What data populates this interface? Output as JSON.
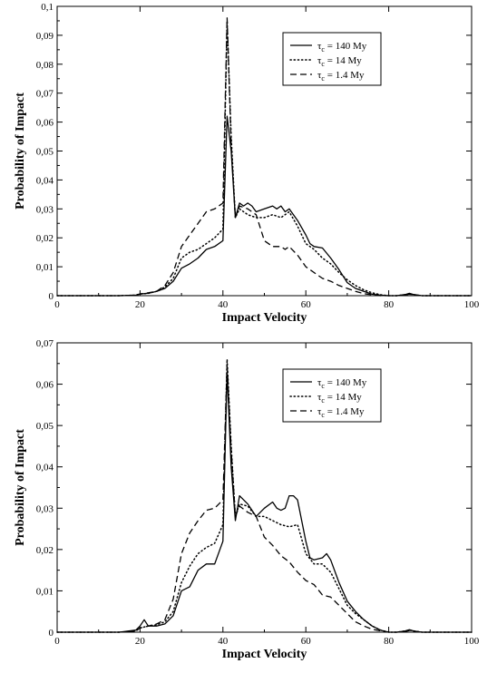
{
  "chart_data": [
    {
      "type": "line",
      "title": "",
      "xlabel": "Impact Velocity",
      "ylabel": "Probability of Impact",
      "xlim": [
        0,
        100
      ],
      "ylim": [
        0,
        0.1
      ],
      "x_ticks": [
        0,
        20,
        40,
        60,
        80,
        100
      ],
      "x_tick_labels": [
        "0",
        "20",
        "40",
        "60",
        "80",
        "100"
      ],
      "y_ticks": [
        0,
        0.01,
        0.02,
        0.03,
        0.04,
        0.05,
        0.06,
        0.07,
        0.08,
        0.09,
        0.1
      ],
      "y_tick_labels": [
        "0",
        "0,01",
        "0,02",
        "0,03",
        "0,04",
        "0,05",
        "0,06",
        "0,07",
        "0,08",
        "0,09",
        "0,1"
      ],
      "grid": false,
      "legend_position": "top-right",
      "series": [
        {
          "name": "τc = 140 My",
          "legend_symbol": "τ",
          "legend_subscript": "c",
          "legend_text": " = 140 My",
          "dash": "solid",
          "x": [
            0,
            15,
            19,
            20,
            22,
            24,
            26,
            28,
            30,
            32,
            34,
            36,
            38,
            40,
            41,
            42,
            43,
            44,
            45,
            46,
            47,
            48,
            50,
            52,
            53,
            54,
            55,
            56,
            58,
            60,
            61,
            62,
            64,
            66,
            68,
            70,
            72,
            74,
            76,
            78,
            80,
            82,
            84,
            85,
            86,
            88,
            90,
            95,
            100
          ],
          "y": [
            0,
            0,
            0.0002,
            0.0006,
            0.0008,
            0.0015,
            0.0025,
            0.005,
            0.0095,
            0.011,
            0.013,
            0.016,
            0.017,
            0.019,
            0.062,
            0.05,
            0.027,
            0.032,
            0.031,
            0.032,
            0.031,
            0.029,
            0.03,
            0.031,
            0.03,
            0.031,
            0.029,
            0.03,
            0.026,
            0.021,
            0.018,
            0.017,
            0.0165,
            0.013,
            0.009,
            0.0045,
            0.0025,
            0.0015,
            0.0005,
            0.0002,
            0,
            0,
            0.0004,
            0.0008,
            0.0004,
            0,
            0,
            0,
            0
          ]
        },
        {
          "name": "τc = 14 My",
          "legend_symbol": "τ",
          "legend_subscript": "c",
          "legend_text": " = 14 My",
          "dash": "dotted",
          "x": [
            0,
            15,
            19,
            20,
            22,
            24,
            26,
            28,
            30,
            32,
            34,
            36,
            38,
            40,
            41,
            42,
            43,
            44,
            46,
            48,
            50,
            52,
            54,
            56,
            58,
            60,
            62,
            64,
            66,
            68,
            70,
            72,
            74,
            76,
            78,
            80,
            82,
            84,
            85,
            86,
            88,
            90,
            95,
            100
          ],
          "y": [
            0,
            0,
            0.0002,
            0.0006,
            0.0008,
            0.0015,
            0.003,
            0.006,
            0.013,
            0.015,
            0.016,
            0.018,
            0.02,
            0.023,
            0.095,
            0.055,
            0.027,
            0.03,
            0.028,
            0.027,
            0.027,
            0.028,
            0.027,
            0.029,
            0.024,
            0.018,
            0.016,
            0.013,
            0.011,
            0.008,
            0.0055,
            0.0035,
            0.002,
            0.001,
            0.0003,
            0,
            0,
            0.0003,
            0.0006,
            0.0003,
            0,
            0,
            0,
            0
          ]
        },
        {
          "name": "τc = 1.4 My",
          "legend_symbol": "τ",
          "legend_subscript": "c",
          "legend_text": " = 1.4 My",
          "dash": "dashed",
          "x": [
            0,
            15,
            19,
            20,
            22,
            24,
            26,
            28,
            30,
            32,
            34,
            36,
            38,
            40,
            41,
            42,
            43,
            44,
            46,
            48,
            50,
            52,
            54,
            55,
            56,
            58,
            60,
            62,
            64,
            66,
            68,
            70,
            72,
            74,
            76,
            78,
            80,
            82,
            84,
            85,
            86,
            88,
            90,
            95,
            100
          ],
          "y": [
            0,
            0,
            0.0002,
            0.0006,
            0.001,
            0.0015,
            0.0035,
            0.008,
            0.017,
            0.021,
            0.025,
            0.029,
            0.03,
            0.032,
            0.096,
            0.052,
            0.027,
            0.031,
            0.03,
            0.028,
            0.019,
            0.017,
            0.017,
            0.016,
            0.017,
            0.014,
            0.01,
            0.008,
            0.006,
            0.005,
            0.0035,
            0.0025,
            0.0015,
            0.0007,
            0.0003,
            0,
            0,
            0,
            0.0003,
            0.0005,
            0.0003,
            0,
            0,
            0,
            0
          ]
        }
      ]
    },
    {
      "type": "line",
      "title": "",
      "xlabel": "Impact Velocity",
      "ylabel": "Probability of Impact",
      "xlim": [
        0,
        100
      ],
      "ylim": [
        0,
        0.07
      ],
      "x_ticks": [
        0,
        20,
        40,
        60,
        80,
        100
      ],
      "x_tick_labels": [
        "0",
        "20",
        "40",
        "60",
        "80",
        "100"
      ],
      "y_ticks": [
        0,
        0.01,
        0.02,
        0.03,
        0.04,
        0.05,
        0.06,
        0.07
      ],
      "y_tick_labels": [
        "0",
        "0,01",
        "0,02",
        "0,03",
        "0,04",
        "0,05",
        "0,06",
        "0,07"
      ],
      "grid": false,
      "legend_position": "top-right",
      "series": [
        {
          "name": "τc = 140 My",
          "legend_symbol": "τ",
          "legend_subscript": "c",
          "legend_text": " = 140 My",
          "dash": "solid",
          "x": [
            0,
            15,
            19,
            20,
            21,
            22,
            24,
            26,
            28,
            30,
            32,
            34,
            36,
            38,
            40,
            41,
            42,
            43,
            44,
            46,
            48,
            50,
            52,
            53,
            54,
            55,
            56,
            57,
            58,
            60,
            61,
            62,
            64,
            65,
            66,
            68,
            70,
            72,
            74,
            76,
            78,
            80,
            82,
            84,
            85,
            86,
            88,
            90,
            95,
            100
          ],
          "y": [
            0,
            0,
            0.0005,
            0.0015,
            0.003,
            0.0015,
            0.0015,
            0.002,
            0.004,
            0.01,
            0.011,
            0.015,
            0.0165,
            0.0165,
            0.022,
            0.063,
            0.04,
            0.027,
            0.033,
            0.031,
            0.028,
            0.03,
            0.0315,
            0.03,
            0.0295,
            0.03,
            0.033,
            0.033,
            0.032,
            0.022,
            0.018,
            0.0175,
            0.018,
            0.019,
            0.0175,
            0.012,
            0.0075,
            0.005,
            0.003,
            0.0015,
            0.0005,
            0,
            0,
            0.0003,
            0.0006,
            0.0003,
            0,
            0,
            0,
            0
          ]
        },
        {
          "name": "τc = 14 My",
          "legend_symbol": "τ",
          "legend_subscript": "c",
          "legend_text": " = 14 My",
          "dash": "dotted",
          "x": [
            0,
            15,
            19,
            20,
            22,
            24,
            26,
            28,
            30,
            32,
            34,
            36,
            38,
            40,
            41,
            42,
            43,
            44,
            46,
            48,
            50,
            52,
            54,
            56,
            58,
            60,
            62,
            64,
            66,
            68,
            70,
            72,
            74,
            76,
            78,
            80,
            82,
            84,
            85,
            86,
            88,
            90,
            95,
            100
          ],
          "y": [
            0,
            0,
            0.0003,
            0.001,
            0.0015,
            0.0018,
            0.0025,
            0.005,
            0.012,
            0.016,
            0.019,
            0.0205,
            0.0215,
            0.026,
            0.066,
            0.045,
            0.028,
            0.031,
            0.0305,
            0.028,
            0.028,
            0.027,
            0.026,
            0.0255,
            0.026,
            0.019,
            0.0165,
            0.0165,
            0.0145,
            0.0105,
            0.0065,
            0.0045,
            0.003,
            0.0015,
            0.0005,
            0,
            0,
            0.0003,
            0.0005,
            0.0003,
            0,
            0,
            0,
            0
          ]
        },
        {
          "name": "τc = 1.4 My",
          "legend_symbol": "τ",
          "legend_subscript": "c",
          "legend_text": " = 1.4 My",
          "dash": "dashed",
          "x": [
            0,
            15,
            19,
            20,
            22,
            24,
            26,
            28,
            30,
            32,
            34,
            36,
            38,
            40,
            41,
            42,
            43,
            44,
            46,
            48,
            50,
            52,
            54,
            56,
            58,
            60,
            62,
            64,
            66,
            68,
            70,
            72,
            74,
            76,
            78,
            80,
            82,
            84,
            85,
            86,
            88,
            90,
            95,
            100
          ],
          "y": [
            0,
            0,
            0.0003,
            0.001,
            0.0015,
            0.002,
            0.003,
            0.008,
            0.019,
            0.024,
            0.027,
            0.0295,
            0.03,
            0.032,
            0.065,
            0.044,
            0.028,
            0.0305,
            0.029,
            0.028,
            0.023,
            0.021,
            0.0185,
            0.017,
            0.0145,
            0.0125,
            0.0115,
            0.009,
            0.0085,
            0.0065,
            0.0045,
            0.0025,
            0.0015,
            0.0007,
            0.0003,
            0,
            0,
            0.0002,
            0.0004,
            0.0002,
            0,
            0,
            0,
            0
          ]
        }
      ]
    }
  ]
}
